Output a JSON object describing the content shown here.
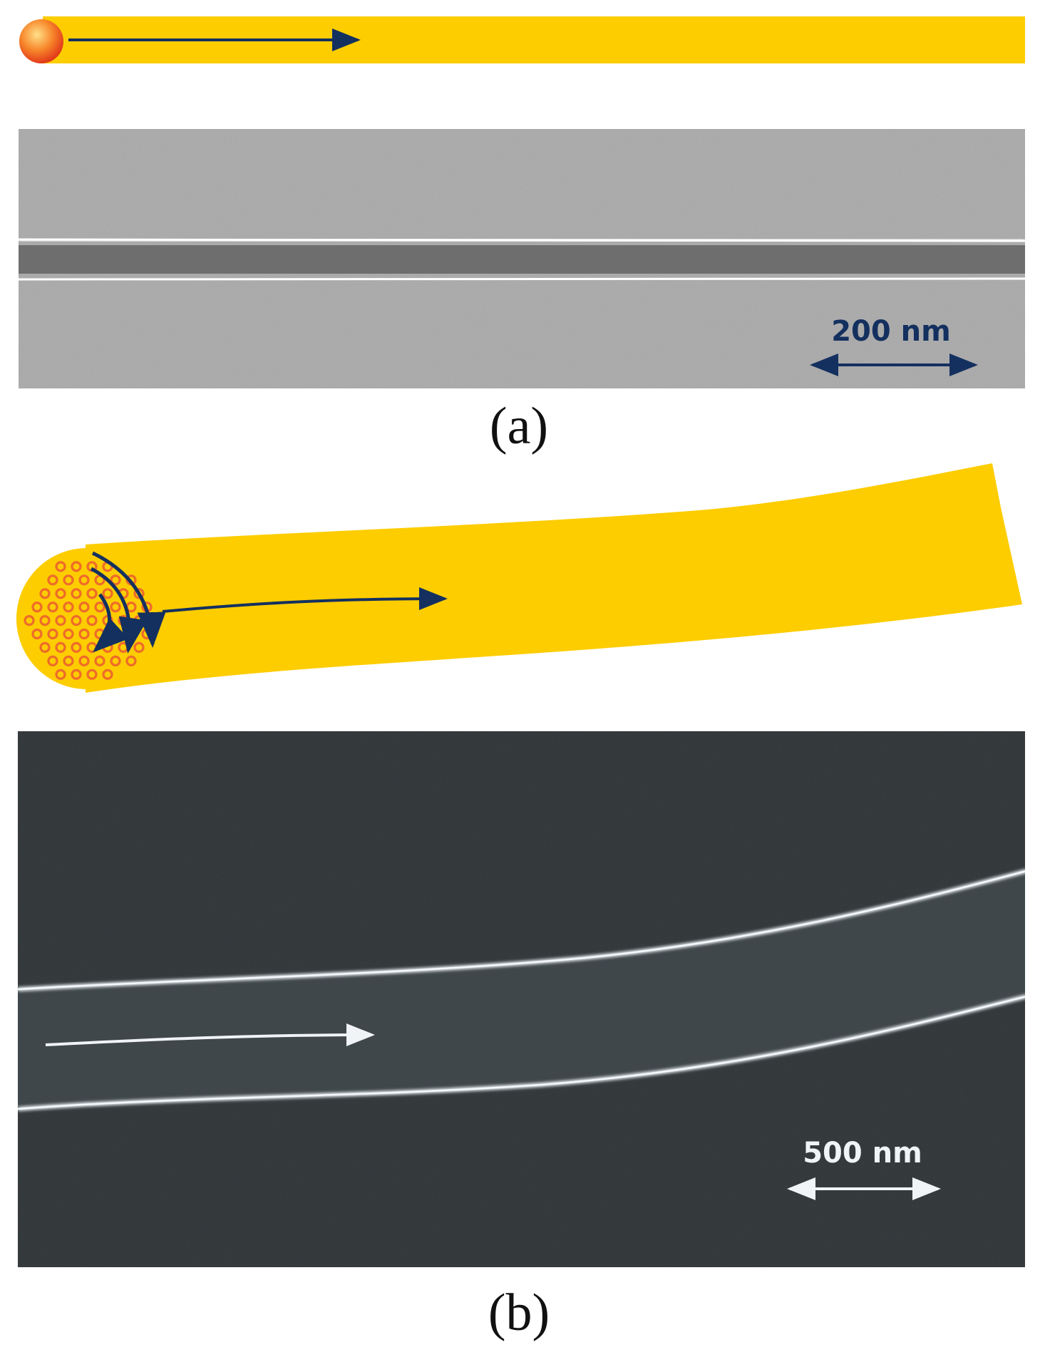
{
  "panel_a": {
    "caption": "(a)",
    "scale_bar_label": "200 nm",
    "colors": {
      "waveguide": "#fdcd00",
      "particle_core": "#ffcf5a",
      "particle_edge": "#e23a1a",
      "arrow": "#14305f",
      "image_background": "#a9a9a9",
      "core_band": "#6e6e6e",
      "edge_highlight": "#f6f6f6"
    }
  },
  "panel_b": {
    "caption": "(b)",
    "scale_bar_label": "500 nm",
    "colors": {
      "waveguide": "#fdcd00",
      "ring": "#ee6b2a",
      "arrow": "#14305f",
      "image_background": "#2f3437",
      "strip": "#40474b",
      "edge_highlight": "#e8eef2",
      "image_arrow": "#f0f4f7"
    }
  }
}
